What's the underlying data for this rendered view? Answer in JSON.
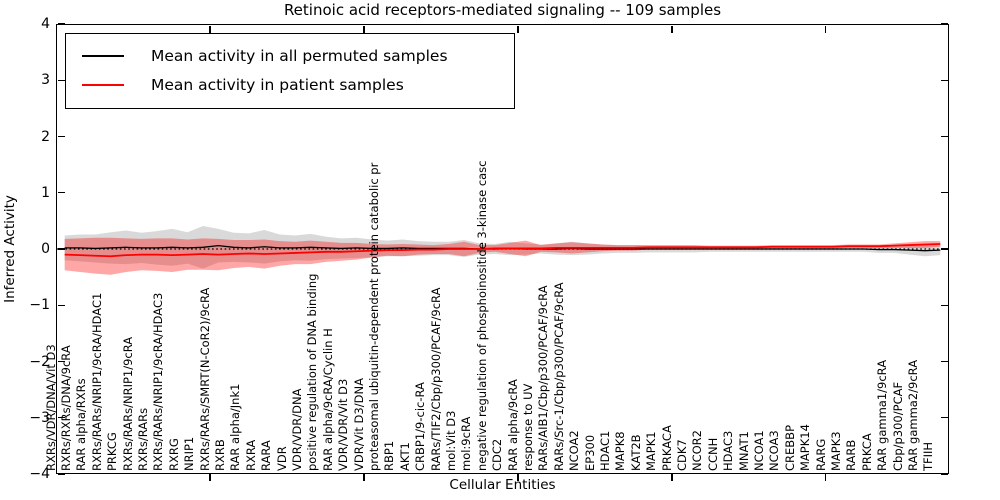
{
  "figure": {
    "title": "Retinoic acid receptors-mediated signaling -- 109 samples",
    "xlabel": "Cellular Entities",
    "ylabel": "Inferred Activity"
  },
  "legend": {
    "items": [
      {
        "label": "Mean activity in all permuted samples",
        "color": "#000000"
      },
      {
        "label": "Mean activity in patient samples",
        "color": "#ff0000"
      }
    ]
  },
  "chart_data": {
    "type": "line",
    "title": "Retinoic acid receptors-mediated signaling -- 109 samples",
    "xlabel": "Cellular Entities",
    "ylabel": "Inferred Activity",
    "ylim": [
      -4,
      4
    ],
    "yticks": [
      4,
      3,
      2,
      1,
      0,
      -1,
      -2,
      -3,
      -4
    ],
    "grid": false,
    "legend_position": "upper left",
    "zero_line": {
      "y": 0,
      "style": "dotted",
      "color": "#000000"
    },
    "x_major_tick_positions": [
      10,
      20,
      30,
      40,
      50
    ],
    "categories": [
      "RXRs/VDR/DNA/Vit D3",
      "RXRs/RXRs/DNA/9cRA",
      "RAR alpha/RXRs",
      "RXRs/RARs/NRIP1/9cRA/HDAC1",
      "PRKCG",
      "RXRs/RARs/NRIP1/9cRA",
      "RXRs/RARs",
      "RXRs/RARs/NRIP1/9cRA/HDAC3",
      "RXRG",
      "NRIP1",
      "RXRs/RARs/SMRT(N-CoR2)/9cRA",
      "RXRB",
      "RAR alpha/Jnk1",
      "RXRA",
      "RARA",
      "VDR",
      "VDR/VDR/DNA",
      "positive regulation of DNA binding",
      "RAR alpha/9cRA/Cyclin H",
      "VDR/VDR/Vit D3",
      "VDR/Vit D3/DNA",
      "proteasomal ubiquitin-dependent protein catabolic pr",
      "RBP1",
      "AKT1",
      "CRBP1/9-cic-RA",
      "RARs/TIF2/Cbp/p300/PCAF/9cRA",
      "mol:Vit D3",
      "mol:9cRA",
      "negative regulation of phosphoinositide 3-kinase casc",
      "CDC2",
      "RAR alpha/9cRA",
      "response to UV",
      "RARs/AIB1/Cbp/p300/PCAF/9cRA",
      "RARs/Src-1/Cbp/p300/PCAF/9cRA",
      "NCOA2",
      "EP300",
      "HDAC1",
      "MAPK8",
      "KAT2B",
      "MAPK1",
      "PRKACA",
      "CDK7",
      "NCOR2",
      "CCNH",
      "HDAC3",
      "MNAT1",
      "NCOA1",
      "NCOA3",
      "CREBBP",
      "MAPK14",
      "RARG",
      "MAPK3",
      "RARB",
      "PRKCA",
      "RAR gamma1/9cRA",
      "Cbp/p300/PCAF",
      "RAR gamma2/9cRA",
      "TFIIH"
    ],
    "series": [
      {
        "name": "Mean activity in all permuted samples",
        "color": "#000000",
        "line_width": 1.3,
        "band_color": "rgba(128,128,128,0.30)",
        "mean": [
          0.02,
          0.02,
          0.01,
          0.02,
          0.03,
          0.02,
          0.02,
          0.03,
          0.02,
          0.03,
          0.06,
          0.03,
          0.02,
          0.04,
          0.02,
          0.02,
          0.03,
          0.02,
          0.01,
          0.02,
          0.01,
          0.01,
          0.02,
          0.01,
          0.01,
          0.01,
          0.01,
          0.0,
          0.0,
          0.01,
          0.0,
          0.0,
          0.0,
          0.01,
          0.0,
          0.0,
          0.0,
          0.0,
          0.0,
          0.0,
          0.0,
          0.0,
          0.0,
          0.0,
          0.0,
          0.0,
          0.0,
          0.0,
          0.0,
          0.0,
          0.0,
          0.0,
          0.0,
          -0.01,
          -0.01,
          -0.02,
          -0.03,
          -0.02
        ],
        "std": [
          0.22,
          0.24,
          0.25,
          0.28,
          0.3,
          0.27,
          0.3,
          0.33,
          0.28,
          0.38,
          0.3,
          0.26,
          0.26,
          0.3,
          0.24,
          0.22,
          0.24,
          0.2,
          0.18,
          0.18,
          0.16,
          0.14,
          0.15,
          0.13,
          0.12,
          0.12,
          0.15,
          0.1,
          0.09,
          0.12,
          0.1,
          0.08,
          0.1,
          0.12,
          0.1,
          0.08,
          0.07,
          0.07,
          0.06,
          0.06,
          0.06,
          0.06,
          0.05,
          0.05,
          0.05,
          0.05,
          0.05,
          0.05,
          0.05,
          0.05,
          0.05,
          0.05,
          0.05,
          0.06,
          0.06,
          0.08,
          0.1,
          0.09
        ]
      },
      {
        "name": "Mean activity in patient samples",
        "color": "#ff0000",
        "line_width": 1.8,
        "band_color": "rgba(255,0,0,0.35)",
        "mean": [
          -0.1,
          -0.11,
          -0.12,
          -0.13,
          -0.11,
          -0.1,
          -0.1,
          -0.11,
          -0.1,
          -0.09,
          -0.1,
          -0.09,
          -0.08,
          -0.09,
          -0.08,
          -0.07,
          -0.06,
          -0.05,
          -0.05,
          -0.04,
          -0.03,
          -0.02,
          -0.02,
          -0.01,
          -0.01,
          0.0,
          0.0,
          0.0,
          0.01,
          0.01,
          0.01,
          0.01,
          0.02,
          0.02,
          0.02,
          0.02,
          0.02,
          0.02,
          0.03,
          0.03,
          0.03,
          0.03,
          0.03,
          0.03,
          0.03,
          0.03,
          0.04,
          0.04,
          0.04,
          0.04,
          0.04,
          0.05,
          0.05,
          0.05,
          0.06,
          0.07,
          0.08,
          0.09
        ],
        "std": [
          0.28,
          0.3,
          0.32,
          0.33,
          0.3,
          0.28,
          0.29,
          0.3,
          0.27,
          0.28,
          0.28,
          0.25,
          0.24,
          0.26,
          0.22,
          0.2,
          0.21,
          0.18,
          0.16,
          0.15,
          0.12,
          0.1,
          0.11,
          0.09,
          0.08,
          0.09,
          0.13,
          0.07,
          0.06,
          0.1,
          0.14,
          0.06,
          0.08,
          0.1,
          0.08,
          0.06,
          0.05,
          0.05,
          0.04,
          0.04,
          0.04,
          0.04,
          0.03,
          0.03,
          0.03,
          0.03,
          0.03,
          0.03,
          0.03,
          0.03,
          0.03,
          0.03,
          0.03,
          0.03,
          0.04,
          0.05,
          0.06,
          0.05
        ]
      }
    ]
  }
}
